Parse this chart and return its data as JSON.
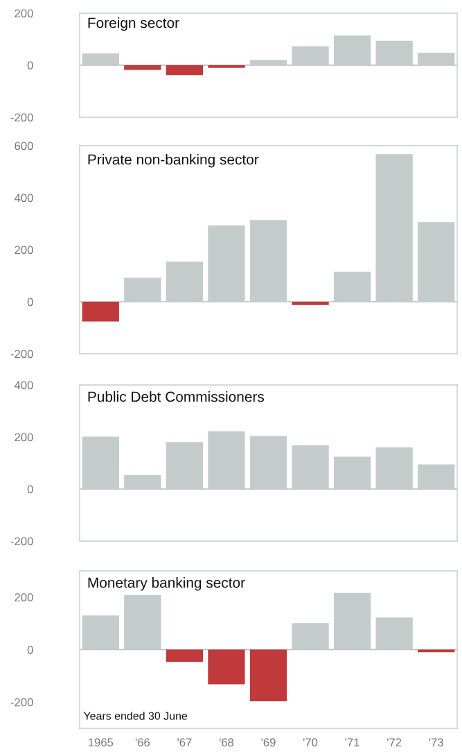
{
  "chart_data": [
    {
      "type": "bar",
      "title": "Foreign sector",
      "categories": [
        null,
        null,
        null,
        null,
        null,
        null,
        null,
        null,
        null
      ],
      "values": [
        45,
        -18,
        -38,
        -10,
        20,
        73,
        114,
        94,
        48
      ],
      "colors": [
        "#c3cccb",
        "#c0393b",
        "#c0393b",
        "#c0393b",
        "#c3cccb",
        "#c3cccb",
        "#c3cccb",
        "#c3cccb",
        "#c3cccb"
      ],
      "ylim": [
        -200,
        200
      ],
      "yticks": [
        -200,
        0,
        200
      ],
      "tick_labels": "y",
      "ref_lines": [
        {
          "axis": "y",
          "value": 0,
          "color": "#b8bcbc"
        }
      ]
    },
    {
      "type": "bar",
      "title": "Private non-banking sector",
      "categories": [
        null,
        null,
        null,
        null,
        null,
        null,
        null,
        null,
        null
      ],
      "values": [
        -76,
        92,
        154,
        293,
        314,
        -13,
        115,
        567,
        306
      ],
      "colors": [
        "#c0393b",
        "#c3cccb",
        "#c3cccb",
        "#c3cccb",
        "#c3cccb",
        "#c0393b",
        "#c3cccb",
        "#c3cccb",
        "#c3cccb"
      ],
      "ylim": [
        -200,
        600
      ],
      "yticks": [
        -200,
        0,
        200,
        400,
        600
      ],
      "tick_labels": "y",
      "ref_lines": [
        {
          "axis": "y",
          "value": 0,
          "color": "#b8bcbc"
        }
      ]
    },
    {
      "type": "bar",
      "title": "Public Debt Commissioners",
      "categories": [
        null,
        null,
        null,
        null,
        null,
        null,
        null,
        null,
        null
      ],
      "values": [
        201,
        54,
        181,
        222,
        204,
        168,
        124,
        160,
        95
      ],
      "colors": [
        "#c3cccb",
        "#c3cccb",
        "#c3cccb",
        "#c3cccb",
        "#c3cccb",
        "#c3cccb",
        "#c3cccb",
        "#c3cccb",
        "#c3cccb"
      ],
      "ylim": [
        -200,
        400
      ],
      "yticks": [
        -200,
        0,
        200,
        400
      ],
      "tick_labels": "y",
      "ref_lines": [
        {
          "axis": "y",
          "value": 0,
          "color": "#b8bcbc"
        }
      ]
    },
    {
      "type": "bar",
      "title": "Monetary banking sector",
      "categories": [
        "1965",
        "'66",
        "'67",
        "'68",
        "'69",
        "'70",
        "'71",
        "'72",
        "'73"
      ],
      "values": [
        130,
        208,
        -47,
        -132,
        -197,
        101,
        216,
        122,
        -10
      ],
      "colors": [
        "#c3cccb",
        "#c3cccb",
        "#c0393b",
        "#c0393b",
        "#c0393b",
        "#c3cccb",
        "#c3cccb",
        "#c3cccb",
        "#c0393b"
      ],
      "ylim": [
        -300,
        300
      ],
      "yticks": [
        -200,
        0,
        200
      ],
      "annotations": [
        "Years ended 30 June"
      ],
      "ref_lines": [
        {
          "axis": "y",
          "value": 0,
          "color": "#b8bcbc"
        }
      ]
    }
  ]
}
